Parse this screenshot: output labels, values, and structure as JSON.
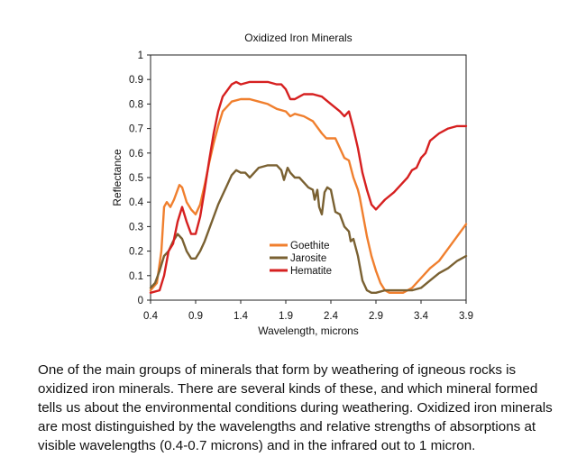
{
  "chart_data": {
    "type": "line",
    "title": "Oxidized Iron Minerals",
    "xlabel": "Wavelength, microns",
    "ylabel": "Reflectance",
    "xlim": [
      0.4,
      3.9
    ],
    "ylim": [
      0,
      1
    ],
    "x_ticks": [
      "0.4",
      "0.9",
      "1.4",
      "1.9",
      "2.4",
      "2.9",
      "3.4",
      "3.9"
    ],
    "y_ticks": [
      "0",
      "0.1",
      "0.2",
      "0.3",
      "0.4",
      "0.5",
      "0.6",
      "0.7",
      "0.8",
      "0.9",
      "1"
    ],
    "grid": false,
    "legend_position": "center-right",
    "series": [
      {
        "name": "Goethite",
        "color": "#f07f2e",
        "points": [
          [
            0.4,
            0.04
          ],
          [
            0.47,
            0.07
          ],
          [
            0.52,
            0.2
          ],
          [
            0.55,
            0.38
          ],
          [
            0.58,
            0.4
          ],
          [
            0.62,
            0.38
          ],
          [
            0.66,
            0.41
          ],
          [
            0.72,
            0.47
          ],
          [
            0.75,
            0.46
          ],
          [
            0.8,
            0.4
          ],
          [
            0.85,
            0.37
          ],
          [
            0.9,
            0.35
          ],
          [
            0.95,
            0.39
          ],
          [
            1.0,
            0.47
          ],
          [
            1.05,
            0.56
          ],
          [
            1.1,
            0.64
          ],
          [
            1.15,
            0.71
          ],
          [
            1.2,
            0.77
          ],
          [
            1.3,
            0.81
          ],
          [
            1.4,
            0.82
          ],
          [
            1.5,
            0.82
          ],
          [
            1.6,
            0.81
          ],
          [
            1.7,
            0.8
          ],
          [
            1.8,
            0.78
          ],
          [
            1.9,
            0.77
          ],
          [
            1.95,
            0.75
          ],
          [
            2.0,
            0.76
          ],
          [
            2.1,
            0.75
          ],
          [
            2.2,
            0.73
          ],
          [
            2.3,
            0.68
          ],
          [
            2.35,
            0.66
          ],
          [
            2.45,
            0.66
          ],
          [
            2.5,
            0.62
          ],
          [
            2.55,
            0.58
          ],
          [
            2.6,
            0.57
          ],
          [
            2.65,
            0.5
          ],
          [
            2.7,
            0.45
          ],
          [
            2.72,
            0.42
          ],
          [
            2.75,
            0.36
          ],
          [
            2.8,
            0.26
          ],
          [
            2.85,
            0.18
          ],
          [
            2.9,
            0.12
          ],
          [
            2.95,
            0.07
          ],
          [
            3.0,
            0.04
          ],
          [
            3.05,
            0.03
          ],
          [
            3.1,
            0.03
          ],
          [
            3.2,
            0.03
          ],
          [
            3.3,
            0.05
          ],
          [
            3.4,
            0.09
          ],
          [
            3.5,
            0.13
          ],
          [
            3.6,
            0.16
          ],
          [
            3.7,
            0.21
          ],
          [
            3.8,
            0.26
          ],
          [
            3.9,
            0.31
          ]
        ]
      },
      {
        "name": "Jarosite",
        "color": "#7a6132",
        "points": [
          [
            0.4,
            0.05
          ],
          [
            0.45,
            0.07
          ],
          [
            0.5,
            0.12
          ],
          [
            0.55,
            0.18
          ],
          [
            0.6,
            0.2
          ],
          [
            0.65,
            0.24
          ],
          [
            0.7,
            0.27
          ],
          [
            0.75,
            0.25
          ],
          [
            0.8,
            0.2
          ],
          [
            0.85,
            0.17
          ],
          [
            0.9,
            0.17
          ],
          [
            0.95,
            0.2
          ],
          [
            1.0,
            0.24
          ],
          [
            1.05,
            0.29
          ],
          [
            1.1,
            0.34
          ],
          [
            1.15,
            0.39
          ],
          [
            1.2,
            0.43
          ],
          [
            1.25,
            0.47
          ],
          [
            1.3,
            0.51
          ],
          [
            1.35,
            0.53
          ],
          [
            1.4,
            0.52
          ],
          [
            1.45,
            0.52
          ],
          [
            1.5,
            0.5
          ],
          [
            1.55,
            0.52
          ],
          [
            1.6,
            0.54
          ],
          [
            1.7,
            0.55
          ],
          [
            1.8,
            0.55
          ],
          [
            1.85,
            0.53
          ],
          [
            1.88,
            0.49
          ],
          [
            1.92,
            0.54
          ],
          [
            1.95,
            0.52
          ],
          [
            2.0,
            0.5
          ],
          [
            2.05,
            0.5
          ],
          [
            2.1,
            0.48
          ],
          [
            2.15,
            0.46
          ],
          [
            2.2,
            0.45
          ],
          [
            2.22,
            0.41
          ],
          [
            2.25,
            0.45
          ],
          [
            2.27,
            0.38
          ],
          [
            2.3,
            0.35
          ],
          [
            2.33,
            0.44
          ],
          [
            2.36,
            0.46
          ],
          [
            2.4,
            0.45
          ],
          [
            2.45,
            0.36
          ],
          [
            2.5,
            0.35
          ],
          [
            2.55,
            0.3
          ],
          [
            2.6,
            0.28
          ],
          [
            2.62,
            0.24
          ],
          [
            2.65,
            0.25
          ],
          [
            2.7,
            0.18
          ],
          [
            2.75,
            0.08
          ],
          [
            2.8,
            0.04
          ],
          [
            2.85,
            0.03
          ],
          [
            2.9,
            0.03
          ],
          [
            3.0,
            0.04
          ],
          [
            3.1,
            0.04
          ],
          [
            3.2,
            0.04
          ],
          [
            3.3,
            0.04
          ],
          [
            3.4,
            0.05
          ],
          [
            3.5,
            0.08
          ],
          [
            3.6,
            0.11
          ],
          [
            3.7,
            0.13
          ],
          [
            3.8,
            0.16
          ],
          [
            3.9,
            0.18
          ]
        ]
      },
      {
        "name": "Hematite",
        "color": "#d62020",
        "points": [
          [
            0.4,
            0.03
          ],
          [
            0.5,
            0.04
          ],
          [
            0.55,
            0.1
          ],
          [
            0.6,
            0.2
          ],
          [
            0.65,
            0.23
          ],
          [
            0.7,
            0.32
          ],
          [
            0.75,
            0.38
          ],
          [
            0.8,
            0.32
          ],
          [
            0.85,
            0.27
          ],
          [
            0.9,
            0.27
          ],
          [
            0.95,
            0.34
          ],
          [
            1.0,
            0.45
          ],
          [
            1.05,
            0.57
          ],
          [
            1.1,
            0.68
          ],
          [
            1.15,
            0.77
          ],
          [
            1.2,
            0.83
          ],
          [
            1.3,
            0.88
          ],
          [
            1.35,
            0.89
          ],
          [
            1.4,
            0.88
          ],
          [
            1.5,
            0.89
          ],
          [
            1.6,
            0.89
          ],
          [
            1.7,
            0.89
          ],
          [
            1.8,
            0.88
          ],
          [
            1.85,
            0.88
          ],
          [
            1.9,
            0.86
          ],
          [
            1.95,
            0.82
          ],
          [
            2.0,
            0.82
          ],
          [
            2.05,
            0.83
          ],
          [
            2.1,
            0.84
          ],
          [
            2.2,
            0.84
          ],
          [
            2.3,
            0.83
          ],
          [
            2.4,
            0.8
          ],
          [
            2.5,
            0.77
          ],
          [
            2.55,
            0.75
          ],
          [
            2.6,
            0.77
          ],
          [
            2.65,
            0.7
          ],
          [
            2.7,
            0.62
          ],
          [
            2.75,
            0.52
          ],
          [
            2.8,
            0.45
          ],
          [
            2.85,
            0.39
          ],
          [
            2.9,
            0.37
          ],
          [
            2.95,
            0.39
          ],
          [
            3.0,
            0.41
          ],
          [
            3.1,
            0.44
          ],
          [
            3.2,
            0.48
          ],
          [
            3.25,
            0.5
          ],
          [
            3.3,
            0.53
          ],
          [
            3.35,
            0.54
          ],
          [
            3.4,
            0.58
          ],
          [
            3.45,
            0.6
          ],
          [
            3.5,
            0.65
          ],
          [
            3.6,
            0.68
          ],
          [
            3.7,
            0.7
          ],
          [
            3.8,
            0.71
          ],
          [
            3.9,
            0.71
          ]
        ]
      }
    ]
  },
  "caption": "One of the main groups of minerals that form by weathering of igneous rocks is oxidized iron minerals. There are several kinds of these, and which mineral formed tells us about the environmental conditions during weathering. Oxidized iron minerals are most distinguished by the wavelengths and relative strengths of absorptions at visible wavelengths (0.4-0.7 microns) and in the infrared out to 1 micron."
}
